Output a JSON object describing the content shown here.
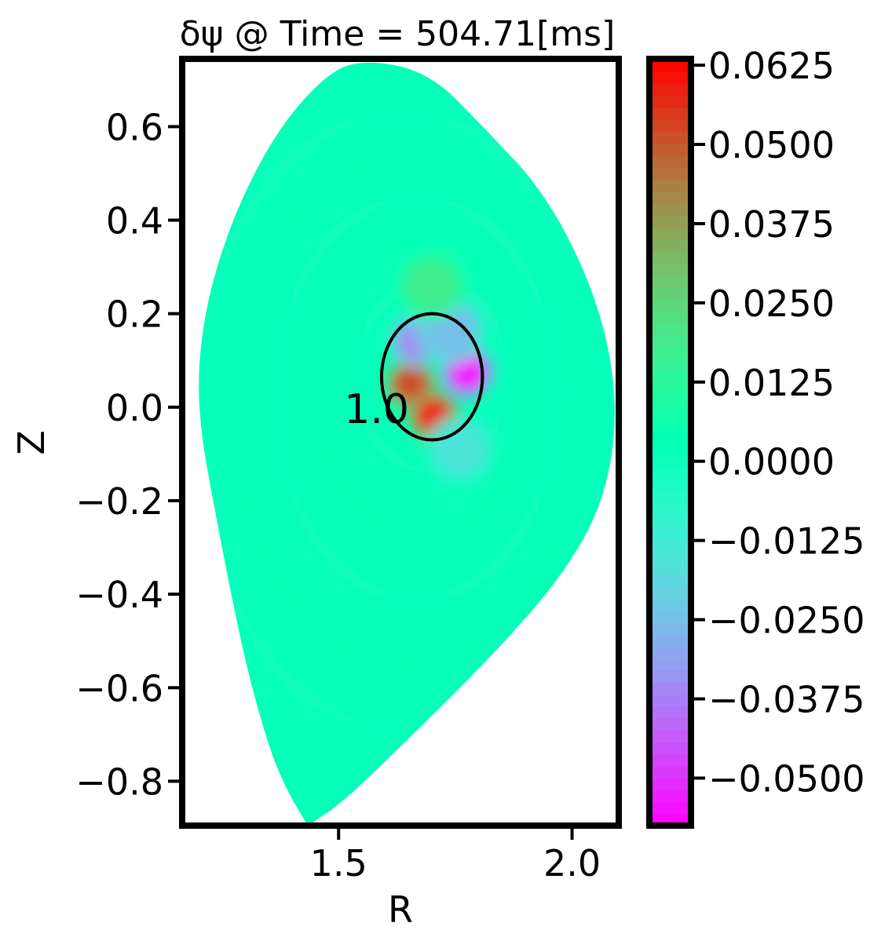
{
  "chart_data": {
    "type": "heatmap",
    "title": "δψ @ Time = 504.71[ms]",
    "xlabel": "R",
    "ylabel": "Z",
    "xlim": [
      1.165,
      2.1
    ],
    "ylim": [
      -0.895,
      0.745
    ],
    "xticks": [
      {
        "value": 1.5,
        "label": "1.5"
      },
      {
        "value": 2.0,
        "label": "2.0"
      }
    ],
    "yticks": [
      {
        "value": 0.6,
        "label": "0.6"
      },
      {
        "value": 0.4,
        "label": "0.4"
      },
      {
        "value": 0.2,
        "label": "0.2"
      },
      {
        "value": 0.0,
        "label": "0.0"
      },
      {
        "value": -0.2,
        "label": "−0.2"
      },
      {
        "value": -0.4,
        "label": "−0.4"
      },
      {
        "value": -0.6,
        "label": "−0.6"
      },
      {
        "value": -0.8,
        "label": "−0.8"
      }
    ],
    "colorbar": {
      "colormap": "rainbow",
      "vmin": -0.0575,
      "vmax": 0.0635,
      "ticks": [
        {
          "value": 0.0625,
          "label": "0.0625"
        },
        {
          "value": 0.05,
          "label": "0.0500"
        },
        {
          "value": 0.0375,
          "label": "0.0375"
        },
        {
          "value": 0.025,
          "label": "0.0250"
        },
        {
          "value": 0.0125,
          "label": "0.0125"
        },
        {
          "value": 0.0,
          "label": "0.0000"
        },
        {
          "value": -0.0125,
          "label": "−0.0125"
        },
        {
          "value": -0.025,
          "label": "−0.0250"
        },
        {
          "value": -0.0375,
          "label": "−0.0375"
        },
        {
          "value": -0.05,
          "label": "−0.0500"
        }
      ]
    },
    "background_value": 0.001,
    "plasma_boundary": [
      [
        1.434,
        -0.895
      ],
      [
        1.38,
        -0.81
      ],
      [
        1.33,
        -0.66
      ],
      [
        1.29,
        -0.5
      ],
      [
        1.24,
        -0.25
      ],
      [
        1.195,
        0.0
      ],
      [
        1.21,
        0.2
      ],
      [
        1.27,
        0.4
      ],
      [
        1.36,
        0.58
      ],
      [
        1.46,
        0.7
      ],
      [
        1.54,
        0.745
      ],
      [
        1.69,
        0.72
      ],
      [
        1.81,
        0.6
      ],
      [
        1.95,
        0.45
      ],
      [
        2.06,
        0.22
      ],
      [
        2.1,
        0.0
      ],
      [
        2.07,
        -0.2
      ],
      [
        1.98,
        -0.36
      ],
      [
        1.84,
        -0.52
      ],
      [
        1.68,
        -0.68
      ],
      [
        1.51,
        -0.845
      ],
      [
        1.434,
        -0.895
      ]
    ],
    "perturbation_blobs": [
      {
        "R": 1.655,
        "Z": 0.05,
        "amplitude": 0.052,
        "note": "red"
      },
      {
        "R": 1.705,
        "Z": -0.02,
        "amplitude": 0.06,
        "note": "red"
      },
      {
        "R": 1.775,
        "Z": 0.075,
        "amplitude": -0.055,
        "note": "purple"
      },
      {
        "R": 1.665,
        "Z": 0.14,
        "amplitude": -0.036,
        "note": "blue"
      },
      {
        "R": 1.74,
        "Z": 0.165,
        "amplitude": -0.025,
        "note": "blue"
      },
      {
        "R": 1.7,
        "Z": 0.26,
        "amplitude": 0.018,
        "note": "yellow-green"
      },
      {
        "R": 1.76,
        "Z": -0.09,
        "amplitude": -0.015,
        "note": "teal"
      }
    ],
    "contour": {
      "level_label": "1.0",
      "label_position": {
        "R": 1.615,
        "Z": 0.0
      },
      "center": {
        "R": 1.7,
        "Z": 0.065
      },
      "half_width": 0.108,
      "half_height": 0.135
    }
  }
}
